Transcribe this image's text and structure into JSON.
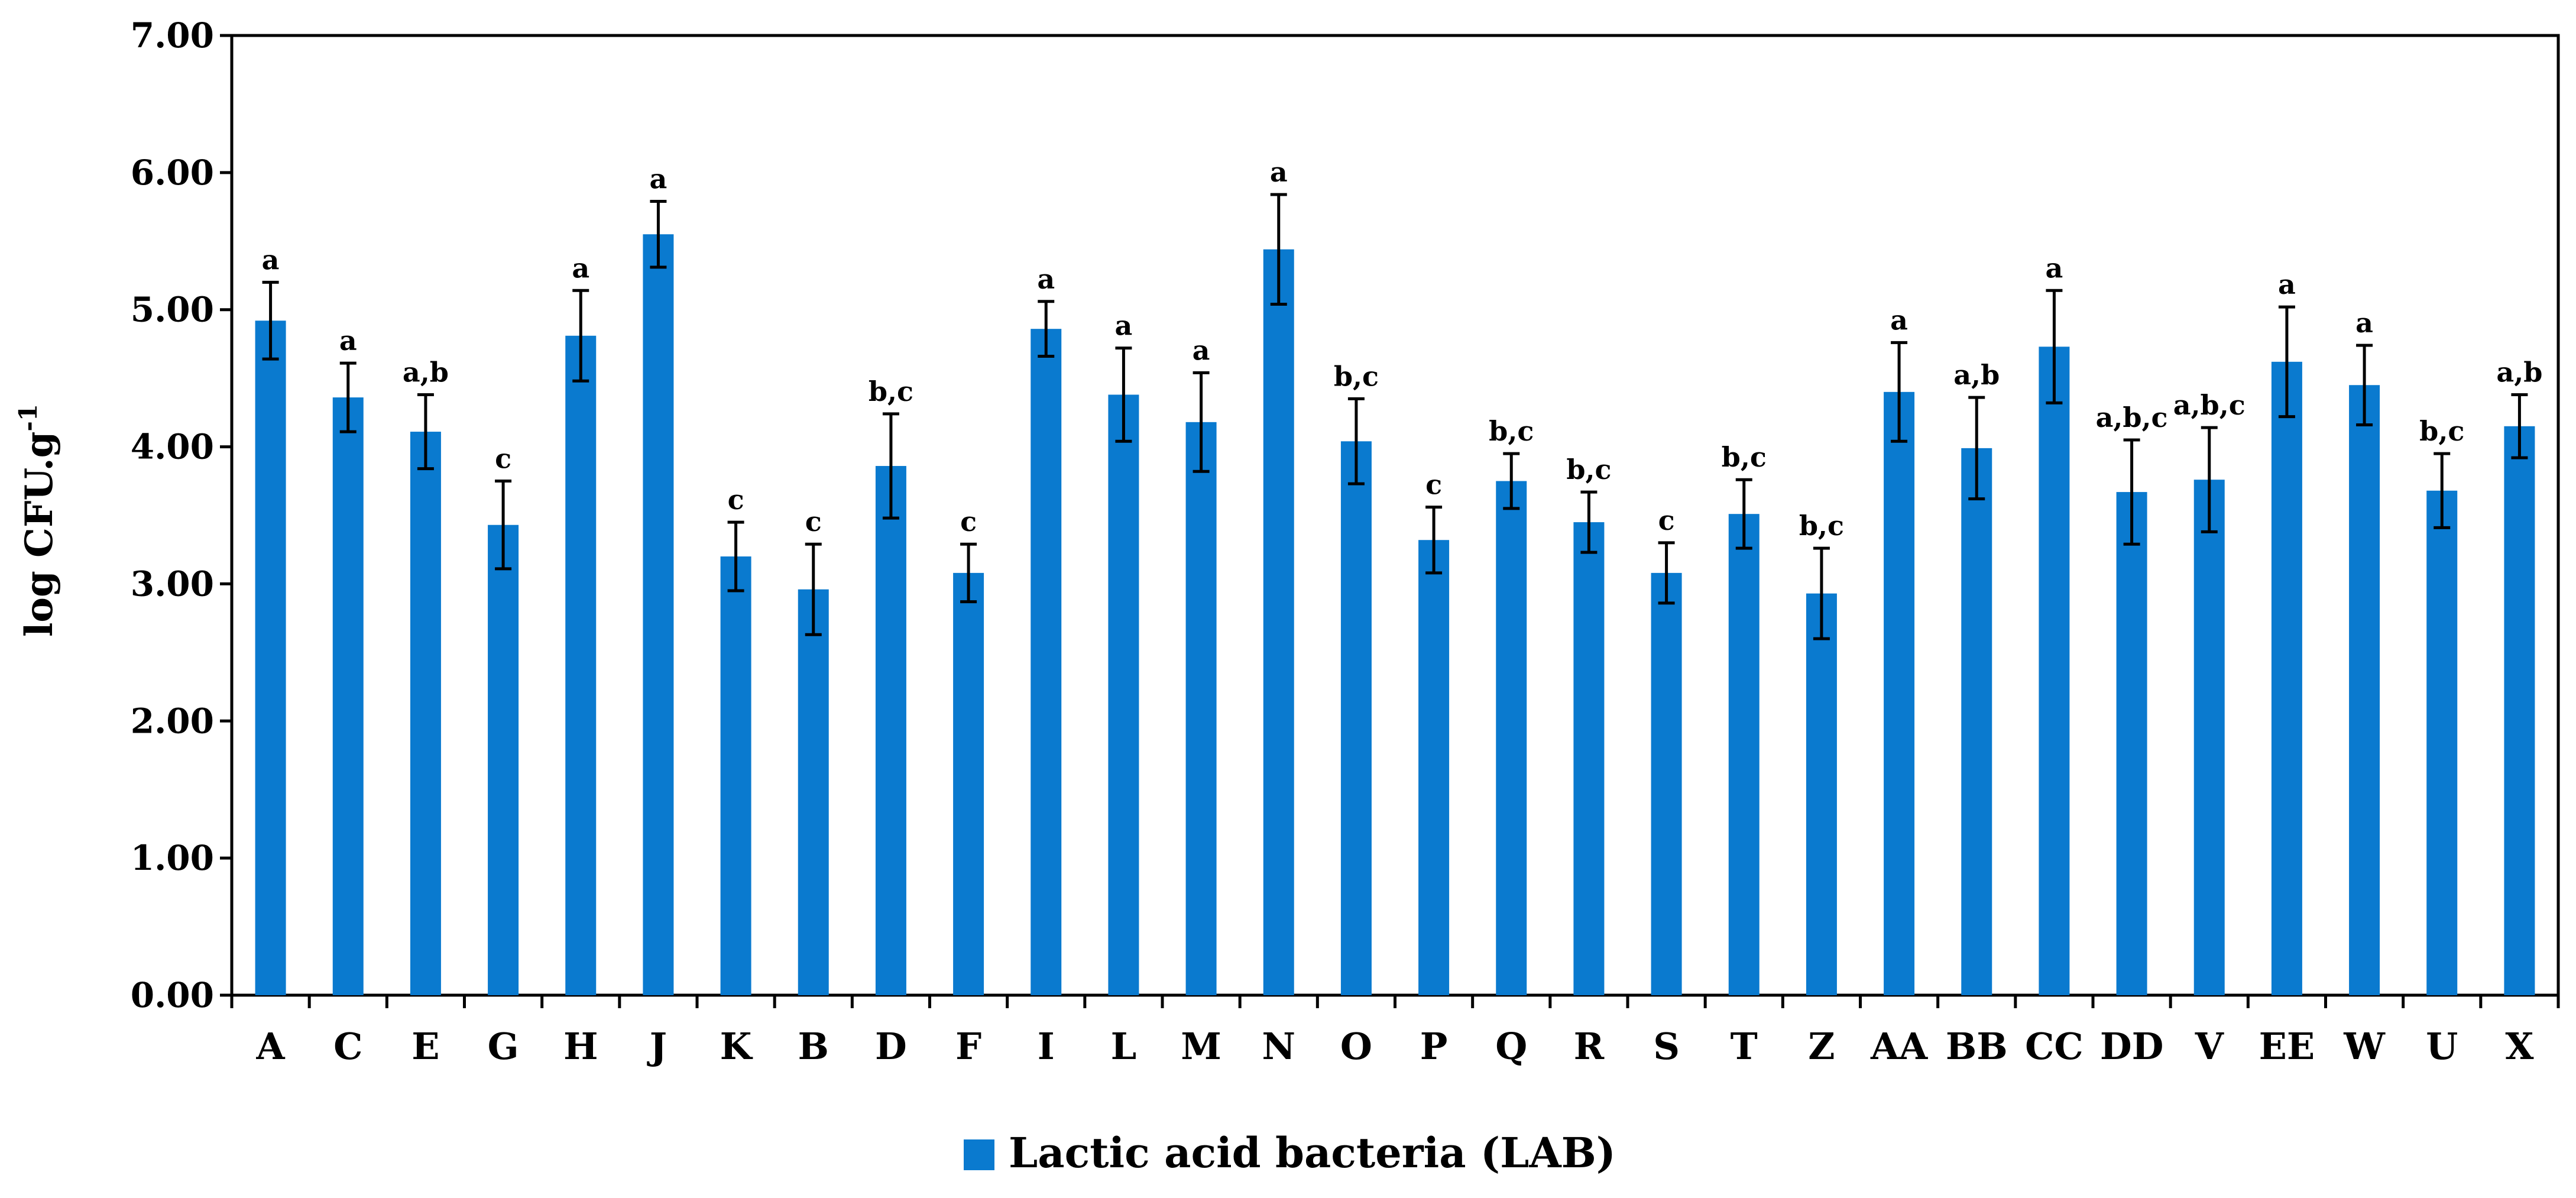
{
  "chart_data": {
    "type": "bar",
    "ylabel": "log CFU.g",
    "ylabel_superscript": "-1",
    "ylim": [
      0,
      7
    ],
    "yticks": [
      0,
      1,
      2,
      3,
      4,
      5,
      6,
      7
    ],
    "ytick_labels": [
      "0.00",
      "1.00",
      "2.00",
      "3.00",
      "4.00",
      "5.00",
      "6.00",
      "7.00"
    ],
    "grid": false,
    "legend_position": "bottom-center",
    "categories": [
      "A",
      "C",
      "E",
      "G",
      "H",
      "J",
      "K",
      "B",
      "D",
      "F",
      "I",
      "L",
      "M",
      "N",
      "O",
      "P",
      "Q",
      "R",
      "S",
      "T",
      "Z",
      "AA",
      "BB",
      "CC",
      "DD",
      "V",
      "EE",
      "W",
      "U",
      "X"
    ],
    "series": [
      {
        "name": "Lactic acid bacteria (LAB)",
        "color": "#0a7acf",
        "values": [
          4.92,
          4.36,
          4.11,
          3.43,
          4.81,
          5.55,
          3.2,
          2.96,
          3.86,
          3.08,
          4.86,
          4.38,
          4.18,
          5.44,
          4.04,
          3.32,
          3.75,
          3.45,
          3.08,
          3.51,
          2.93,
          4.4,
          3.99,
          4.73,
          3.67,
          3.76,
          4.62,
          4.45,
          3.68,
          4.15
        ],
        "errors": [
          0.28,
          0.25,
          0.27,
          0.32,
          0.33,
          0.24,
          0.25,
          0.33,
          0.38,
          0.21,
          0.2,
          0.34,
          0.36,
          0.4,
          0.31,
          0.24,
          0.2,
          0.22,
          0.22,
          0.25,
          0.33,
          0.36,
          0.37,
          0.41,
          0.38,
          0.38,
          0.4,
          0.29,
          0.27,
          0.23
        ],
        "significance": [
          "a",
          "a",
          "a,b",
          "c",
          "a",
          "a",
          "c",
          "c",
          "b,c",
          "c",
          "a",
          "a",
          "a",
          "a",
          "b,c",
          "c",
          "b,c",
          "b,c",
          "c",
          "b,c",
          "b,c",
          "a",
          "a,b",
          "a",
          "a,b,c",
          "a,b,c",
          "a",
          "a",
          "b,c",
          "a,b"
        ]
      }
    ]
  }
}
